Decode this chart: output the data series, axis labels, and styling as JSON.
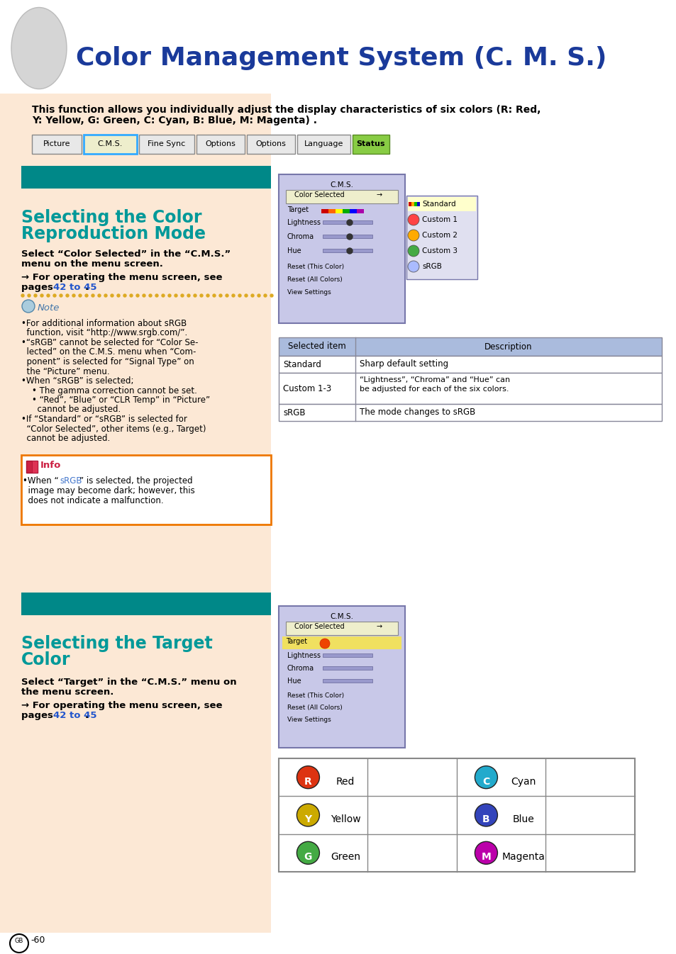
{
  "page_bg": "#ffffff",
  "left_panel_bg": "#fce8d5",
  "teal_color": "#008888",
  "title_color": "#1a3a9a",
  "section_title_color": "#009999",
  "link_color": "#2255cc",
  "info_border_color": "#ee7700",
  "table_header_bg": "#aabbdd",
  "table_border_color": "#888899",
  "cms_panel_bg": "#c8c8e8",
  "cms_border_color": "#7777aa",
  "dotted_line_color": "#ddaa22",
  "srgb_link_color": "#4477cc",
  "main_title": "Color Management System (C. M. S.)",
  "intro_line1": "This function allows you individually adjust the display characteristics of six colors (R: Red,",
  "intro_line2": "Y: Yellow, G: Green, C: Cyan, B: Blue, M: Magenta) .",
  "nav_items": [
    "Picture",
    "C.M.S.",
    "Fine Sync",
    "Options",
    "Options",
    "Language",
    "Status"
  ],
  "nav_widths": [
    70,
    75,
    78,
    68,
    68,
    75,
    52
  ],
  "nav_fcs": [
    "#e8e8e8",
    "#eeeecc",
    "#e8e8e8",
    "#e8e8e8",
    "#e8e8e8",
    "#e8e8e8",
    "#88cc44"
  ],
  "nav_ecs": [
    "#888888",
    "#33aaff",
    "#888888",
    "#888888",
    "#888888",
    "#888888",
    "#558822"
  ],
  "nav_lws": [
    1,
    2,
    1,
    1,
    1,
    1,
    1
  ],
  "s1_title1": "Selecting the Color",
  "s1_title2": "Reproduction Mode",
  "s1_b1": "Select “Color Selected” in the “C.M.S.”",
  "s1_b2": "menu on the menu screen.",
  "s1_b3": "→ For operating the menu screen, see",
  "s1_b4": "pages ",
  "s1_link": "42 to 45",
  "s1_b4end": ".",
  "note_bullets": [
    "•For additional information about sRGB",
    "  function, visit “http://www.srgb.com/”.",
    "•“sRGB” cannot be selected for “Color Se-",
    "  lected” on the C.M.S. menu when “Com-",
    "  ponent” is selected for “Signal Type” on",
    "  the “Picture” menu.",
    "•When “sRGB” is selected;",
    "    • The gamma correction cannot be set.",
    "    • “Red”, “Blue” or “CLR Temp” in “Picture”",
    "      cannot be adjusted.",
    "•If “Standard” or “sRGB” is selected for",
    "  “Color Selected”, other items (e.g., Target)",
    "  cannot be adjusted."
  ],
  "info_text1": "•When “",
  "info_srgb": "sRGB",
  "info_text2": "” is selected, the projected",
  "info_text3": "  image may become dark; however, this",
  "info_text4": "  does not indicate a malfunction.",
  "table1_headers": [
    "Selected item",
    "Description"
  ],
  "table1_rows": [
    [
      "Standard",
      "Sharp default setting"
    ],
    [
      "Custom 1-3",
      "“Lightness”, “Chroma” and “Hue” can\nbe adjusted for each of the six colors."
    ],
    [
      "sRGB",
      "The mode changes to sRGB"
    ]
  ],
  "s2_title1": "Selecting the Target",
  "s2_title2": "Color",
  "s2_b1": "Select “Target” in the “C.M.S.” menu on",
  "s2_b2": "the menu screen.",
  "s2_b3": "→ For operating the menu screen, see",
  "s2_b4": "pages ",
  "s2_link": "42 to 45",
  "s2_b4end": ".",
  "cms1_rows": [
    "Color Selected",
    "Target",
    "Lightness",
    "Chroma",
    "Hue",
    "Reset (This Color)",
    "Reset (All Colors)",
    "View Settings"
  ],
  "drop_items": [
    "Standard",
    "Custom 1",
    "Custom 2",
    "Custom 3",
    "sRGB"
  ],
  "cms2_rows": [
    "Color Selected",
    "Target",
    "Lightness",
    "Chroma",
    "Hue",
    "Reset (This Color)",
    "Reset (All Colors)",
    "View Settings"
  ],
  "color_rows": [
    [
      {
        "label": "R",
        "color": "#dd3311"
      },
      "Red",
      {
        "label": "C",
        "color": "#22aacc"
      },
      "Cyan"
    ],
    [
      {
        "label": "Y",
        "color": "#ccaa00"
      },
      "Yellow",
      {
        "label": "B",
        "color": "#3344bb"
      },
      "Blue"
    ],
    [
      {
        "label": "G",
        "color": "#44aa44"
      },
      "Green",
      {
        "label": "M",
        "color": "#bb00aa"
      },
      "Magenta"
    ]
  ],
  "footer_text": "-60"
}
